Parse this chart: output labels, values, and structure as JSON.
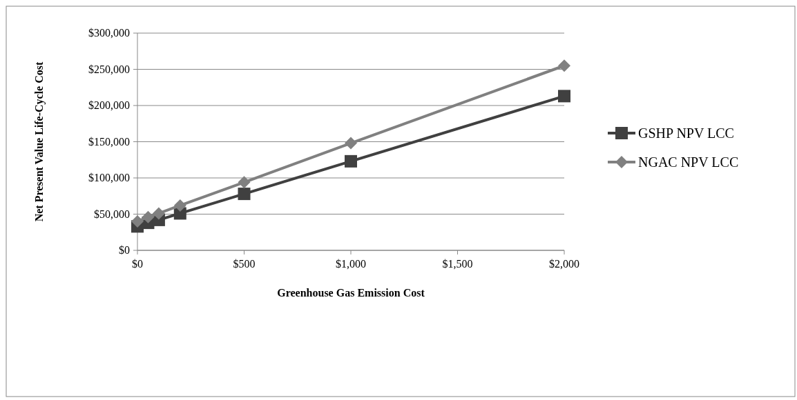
{
  "chart_data": {
    "type": "line",
    "xlabel": "Greenhouse  Gas Emission Cost",
    "ylabel": "Net Present Value Life-Cycle Cost",
    "x": [
      0,
      50,
      100,
      200,
      500,
      1000,
      2000
    ],
    "series": [
      {
        "name": "GSHP NPV LCC",
        "color": "#404040",
        "marker": "square",
        "values": [
          33000,
          38000,
          42000,
          51000,
          78000,
          123000,
          213000
        ]
      },
      {
        "name": "NGAC NPV LCC",
        "color": "#808080",
        "marker": "diamond",
        "values": [
          40000,
          46000,
          51000,
          62000,
          94000,
          148000,
          255000
        ]
      }
    ],
    "xlim": [
      0,
      2000
    ],
    "xticks": [
      {
        "value": 0,
        "label": "$0"
      },
      {
        "value": 500,
        "label": "$500"
      },
      {
        "value": 1000,
        "label": "$1,000"
      },
      {
        "value": 1500,
        "label": "$1,500"
      },
      {
        "value": 2000,
        "label": "$2,000"
      }
    ],
    "ylim": [
      0,
      300000
    ],
    "yticks": [
      {
        "value": 0,
        "label": "$0"
      },
      {
        "value": 50000,
        "label": "$50,000"
      },
      {
        "value": 100000,
        "label": "$100,000"
      },
      {
        "value": 150000,
        "label": "$150,000"
      },
      {
        "value": 200000,
        "label": "$200,000"
      },
      {
        "value": 250000,
        "label": "$250,000"
      },
      {
        "value": 300000,
        "label": "$300,000"
      }
    ],
    "grid": "y",
    "legend": "right"
  }
}
